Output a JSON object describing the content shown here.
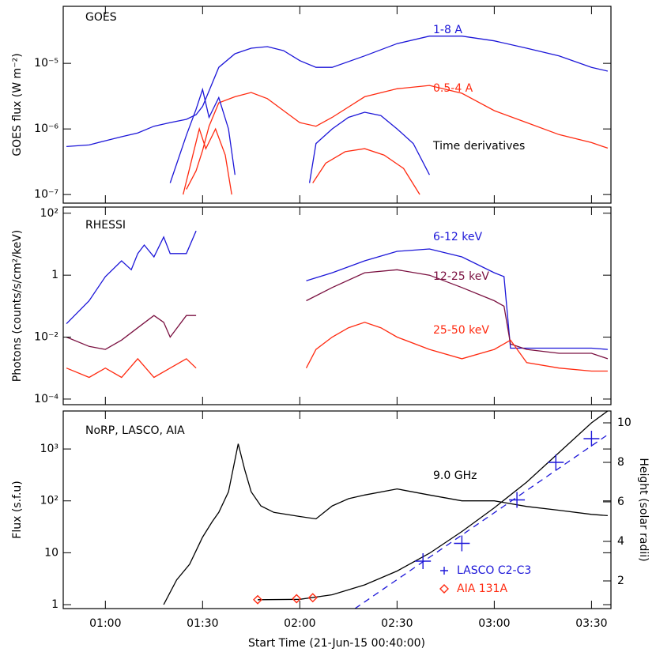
{
  "chart_data": [
    {
      "type": "line",
      "title": "GOES",
      "ylabel": "GOES flux (W m⁻²)",
      "log_scale": true,
      "ylim": [
        7.4e-08,
        7.4e-05
      ],
      "yticks": [
        {
          "value": 1e-07,
          "label": "10⁻⁷"
        },
        {
          "value": 1e-06,
          "label": "10⁻⁶"
        },
        {
          "value": 1e-05,
          "label": "10⁻⁵"
        }
      ],
      "series": [
        {
          "name": "1-8 A",
          "color": "#1c16d8",
          "x": [
            "00:48",
            "00:55",
            "01:00",
            "01:05",
            "01:10",
            "01:15",
            "01:20",
            "01:25",
            "01:28",
            "01:30",
            "01:32",
            "01:35",
            "01:40",
            "01:45",
            "01:50",
            "01:55",
            "02:00",
            "02:05",
            "02:10",
            "02:20",
            "02:30",
            "02:40",
            "02:50",
            "03:00",
            "03:10",
            "03:20",
            "03:30",
            "03:35"
          ],
          "values": [
            5.4e-07,
            5.7e-07,
            6.6e-07,
            7.6e-07,
            8.7e-07,
            1.1e-06,
            1.25e-06,
            1.4e-06,
            1.65e-06,
            2.2e-06,
            3.8e-06,
            8.7e-06,
            1.4e-05,
            1.7e-05,
            1.8e-05,
            1.56e-05,
            1.1e-05,
            8.7e-06,
            8.7e-06,
            1.3e-05,
            2e-05,
            2.6e-05,
            2.6e-05,
            2.2e-05,
            1.7e-05,
            1.3e-05,
            8.7e-06,
            7.6e-06
          ]
        },
        {
          "name": "0.5-4 A",
          "color": "#ff2a10",
          "x": [
            "01:25",
            "01:28",
            "01:30",
            "01:32",
            "01:35",
            "01:40",
            "01:45",
            "01:50",
            "01:55",
            "02:00",
            "02:05",
            "02:10",
            "02:20",
            "02:30",
            "02:40",
            "02:50",
            "03:00",
            "03:10",
            "03:20",
            "03:30",
            "03:35"
          ],
          "values": [
            1.2e-07,
            2.3e-07,
            4.7e-07,
            1.1e-06,
            2.5e-06,
            3.1e-06,
            3.6e-06,
            2.9e-06,
            1.9e-06,
            1.25e-06,
            1.1e-06,
            1.5e-06,
            3.1e-06,
            4.1e-06,
            4.6e-06,
            3.5e-06,
            1.9e-06,
            1.25e-06,
            8.2e-07,
            6.2e-07,
            5.1e-07
          ]
        }
      ],
      "derivatives": {
        "label": "Time derivatives",
        "series": [
          {
            "color": "#1c16d8",
            "x": [
              "01:20",
              "01:25",
              "01:28",
              "01:30",
              "01:32",
              "01:35",
              "01:38",
              "01:40",
              "01:50",
              "02:03",
              "02:05",
              "02:10",
              "02:15",
              "02:20",
              "02:25",
              "02:30",
              "02:35",
              "02:40"
            ],
            "values": [
              1.5e-07,
              8e-07,
              2e-06,
              4e-06,
              1.5e-06,
              3e-06,
              1e-06,
              2e-07,
              null,
              1.5e-07,
              6e-07,
              1e-06,
              1.5e-06,
              1.8e-06,
              1.6e-06,
              1e-06,
              6e-07,
              2e-07
            ]
          },
          {
            "color": "#ff2a10",
            "x": [
              "01:24",
              "01:27",
              "01:29",
              "01:31",
              "01:34",
              "01:37",
              "01:39",
              "01:50",
              "02:04",
              "02:08",
              "02:14",
              "02:20",
              "02:26",
              "02:32",
              "02:37"
            ],
            "values": [
              1e-07,
              4e-07,
              1e-06,
              5e-07,
              1e-06,
              4e-07,
              1e-07,
              null,
              1.5e-07,
              3e-07,
              4.5e-07,
              5e-07,
              4e-07,
              2.5e-07,
              1e-07
            ]
          }
        ]
      }
    },
    {
      "type": "line",
      "title": "RHESSI",
      "ylabel": "Photons (counts/s/cm²/keV)",
      "log_scale": true,
      "ylim": [
        6.6e-05,
        158
      ],
      "yticks": [
        {
          "value": 0.0001,
          "label": "10⁻⁴"
        },
        {
          "value": 0.01,
          "label": "10⁻²"
        },
        1,
        {
          "value": 100,
          "label": "10²"
        }
      ],
      "series": [
        {
          "name": "6-12 keV",
          "color": "#1c16d8",
          "x": [
            "00:48",
            "00:55",
            "01:00",
            "01:05",
            "01:08",
            "01:10",
            "01:12",
            "01:15",
            "01:18",
            "01:20",
            "01:25",
            "01:28",
            "01:45",
            "02:02",
            "02:10",
            "02:20",
            "02:30",
            "02:40",
            "02:50",
            "03:00",
            "03:03",
            "03:05",
            "03:10",
            "03:20",
            "03:30",
            "03:35"
          ],
          "values": [
            0.027,
            0.15,
            0.9,
            2.9,
            1.5,
            5,
            9.4,
            3.9,
            17,
            5,
            5,
            27,
            null,
            0.66,
            1.2,
            2.9,
            5.9,
            7,
            3.9,
            1.2,
            0.9,
            0.0044,
            0.0044,
            0.0044,
            0.0044,
            0.004
          ]
        },
        {
          "name": "12-25 keV",
          "color": "#7a1040",
          "x": [
            "00:48",
            "00:55",
            "01:00",
            "01:05",
            "01:10",
            "01:15",
            "01:18",
            "01:20",
            "01:25",
            "01:28",
            "01:45",
            "02:02",
            "02:10",
            "02:20",
            "02:30",
            "02:40",
            "02:50",
            "03:00",
            "03:03",
            "03:05",
            "03:10",
            "03:20",
            "03:30",
            "03:35"
          ],
          "values": [
            0.01,
            0.005,
            0.004,
            0.008,
            0.02,
            0.05,
            0.03,
            0.01,
            0.05,
            0.05,
            null,
            0.15,
            0.4,
            1.2,
            1.5,
            1.0,
            0.4,
            0.15,
            0.1,
            0.006,
            0.004,
            0.003,
            0.003,
            0.002
          ]
        },
        {
          "name": "25-50 keV",
          "color": "#ff2a10",
          "x": [
            "00:48",
            "00:55",
            "01:00",
            "01:05",
            "01:10",
            "01:15",
            "01:20",
            "01:25",
            "01:28",
            "01:45",
            "02:02",
            "02:05",
            "02:10",
            "02:15",
            "02:20",
            "02:25",
            "02:30",
            "02:40",
            "02:50",
            "03:00",
            "03:05",
            "03:10",
            "03:20",
            "03:30",
            "03:35"
          ],
          "values": [
            0.001,
            0.0005,
            0.001,
            0.0005,
            0.002,
            0.0005,
            0.001,
            0.002,
            0.001,
            null,
            0.001,
            0.004,
            0.01,
            0.02,
            0.03,
            0.02,
            0.01,
            0.004,
            0.002,
            0.004,
            0.008,
            0.0015,
            0.001,
            0.0008,
            0.0008
          ]
        }
      ]
    },
    {
      "type": "line",
      "title": "NoRP, LASCO, AIA",
      "ylabel": "Flux (s.f.u)",
      "y2label": "Height (solar radii)",
      "xlabel": "Start Time (21-Jun-15 00:40:00)",
      "log_scale": true,
      "xlim": [
        "00:47",
        "03:36"
      ],
      "xticks": [
        "01:00",
        "01:30",
        "02:00",
        "02:30",
        "03:00",
        "03:30"
      ],
      "ylim": [
        0.84,
        5400
      ],
      "yticks": [
        1,
        10,
        {
          "value": 100,
          "label": "10²"
        },
        {
          "value": 1000,
          "label": "10³"
        }
      ],
      "y2lim": [
        0.6,
        10.6
      ],
      "y2ticks": [
        2,
        4,
        6,
        8,
        10
      ],
      "series": [
        {
          "name": "9.0 GHz",
          "color": "#000000",
          "x": [
            "01:18",
            "01:22",
            "01:26",
            "01:30",
            "01:33",
            "01:35",
            "01:38",
            "01:41",
            "01:43",
            "01:45",
            "01:48",
            "01:52",
            "02:00",
            "02:05",
            "02:10",
            "02:15",
            "02:20",
            "02:30",
            "02:40",
            "02:50",
            "03:00",
            "03:10",
            "03:20",
            "03:30",
            "03:35"
          ],
          "values": [
            1,
            3,
            6,
            20,
            40,
            60,
            150,
            1260,
            400,
            150,
            80,
            60,
            50,
            45,
            80,
            110,
            130,
            170,
            130,
            100,
            100,
            78,
            66,
            55,
            52
          ]
        },
        {
          "name": "LASCO C2-C3",
          "color": "#1c16d8",
          "axis": "y2",
          "marker": "plus",
          "x": [
            "02:38",
            "02:50",
            "03:07",
            "03:19",
            "03:30"
          ],
          "values": [
            3.0,
            3.9,
            6.1,
            8.0,
            9.2
          ]
        },
        {
          "name": "AIA 131A",
          "color": "#ff2a10",
          "axis": "y2",
          "marker": "diamond",
          "x": [
            "01:47",
            "01:59",
            "02:04"
          ],
          "values": [
            1.05,
            1.1,
            1.15
          ]
        }
      ],
      "fits": [
        {
          "color": "#000000",
          "axis": "y2",
          "line_style": "solid",
          "x": [
            "01:47",
            "02:00",
            "02:10",
            "02:20",
            "02:30",
            "02:40",
            "02:50",
            "03:00",
            "03:10",
            "03:20",
            "03:30",
            "03:35"
          ],
          "values": [
            1.05,
            1.07,
            1.3,
            1.8,
            2.5,
            3.4,
            4.5,
            5.7,
            7.0,
            8.5,
            10.0,
            10.6
          ]
        },
        {
          "color": "#1c16d8",
          "axis": "y2",
          "line_style": "dashed",
          "x": [
            "02:17",
            "03:35"
          ],
          "values": [
            0.6,
            9.4
          ]
        }
      ]
    }
  ]
}
